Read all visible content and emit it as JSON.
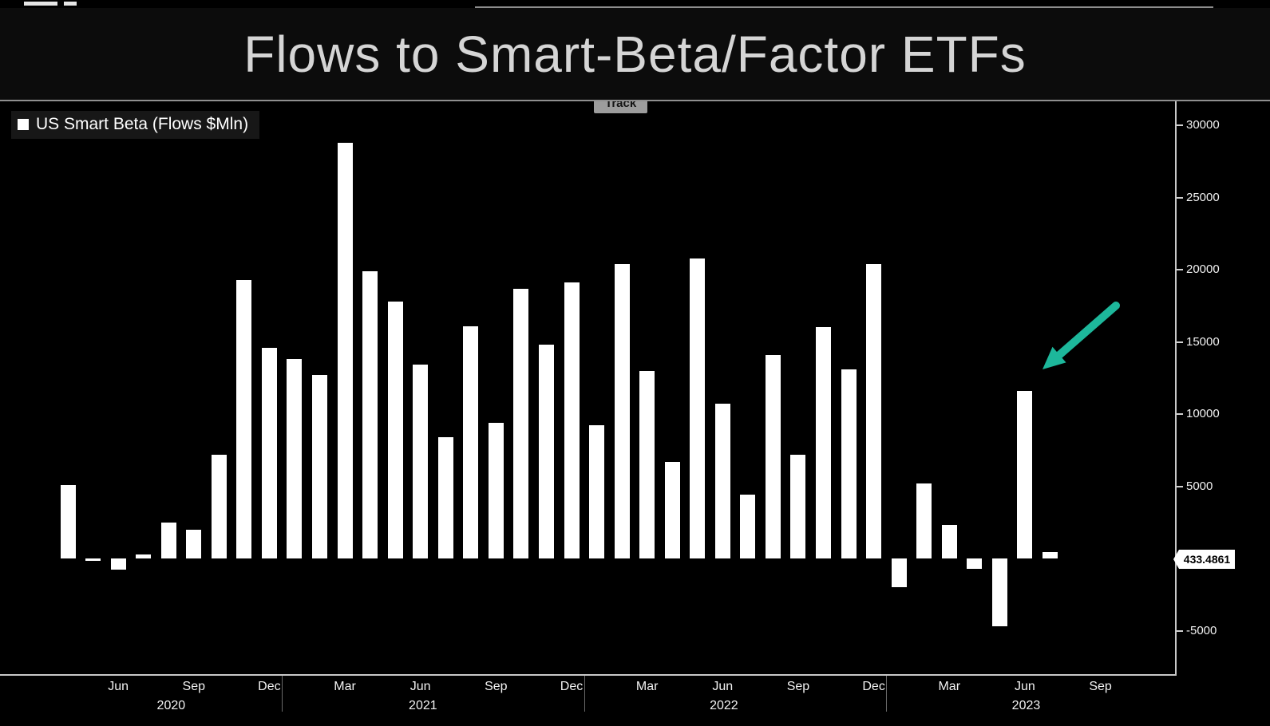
{
  "header": {
    "title": "Flows to Smart-Beta/Factor ETFs"
  },
  "toolbar": {
    "track_label": "Track"
  },
  "legend": {
    "label": "US Smart Beta (Flows $Mln)",
    "marker_color": "#ffffff"
  },
  "last_value_label": "433.4861",
  "annotation_arrow": {
    "color": "#1db79b",
    "points_at": "Jun 2023"
  },
  "chart_data": {
    "type": "bar",
    "title": "Flows to Smart-Beta/Factor ETFs",
    "series_name": "US Smart Beta (Flows $Mln)",
    "bar_color": "#ffffff",
    "background": "#000000",
    "grid": false,
    "legend_position": "top-left",
    "y_axis_side": "right",
    "ylim": [
      -7000,
      31500
    ],
    "yticks": [
      30000,
      25000,
      20000,
      15000,
      10000,
      5000,
      -5000
    ],
    "categories": [
      "Apr 2020",
      "May 2020",
      "Jun 2020",
      "Jul 2020",
      "Aug 2020",
      "Sep 2020",
      "Oct 2020",
      "Nov 2020",
      "Dec 2020",
      "Jan 2021",
      "Feb 2021",
      "Mar 2021",
      "Apr 2021",
      "May 2021",
      "Jun 2021",
      "Jul 2021",
      "Aug 2021",
      "Sep 2021",
      "Oct 2021",
      "Nov 2021",
      "Dec 2021",
      "Jan 2022",
      "Feb 2022",
      "Mar 2022",
      "Apr 2022",
      "May 2022",
      "Jun 2022",
      "Jul 2022",
      "Aug 2022",
      "Sep 2022",
      "Oct 2022",
      "Nov 2022",
      "Dec 2022",
      "Jan 2023",
      "Feb 2023",
      "Mar 2023",
      "Apr 2023",
      "May 2023",
      "Jun 2023",
      "Jul 2023"
    ],
    "values": [
      5100,
      -150,
      -800,
      250,
      2500,
      2000,
      7200,
      19300,
      14600,
      13800,
      12700,
      28800,
      19900,
      17800,
      13400,
      8400,
      16100,
      9400,
      18700,
      14800,
      19100,
      9200,
      20400,
      13000,
      6700,
      20800,
      10700,
      4400,
      14100,
      7200,
      16000,
      13100,
      20400,
      -2000,
      5200,
      2300,
      -700,
      -4700,
      11600,
      433.4861
    ],
    "last_value": 433.4861,
    "x_ticks": [
      {
        "label": "Jun",
        "month_index": 2
      },
      {
        "label": "Sep",
        "month_index": 5
      },
      {
        "label": "Dec",
        "month_index": 8
      },
      {
        "label": "Mar",
        "month_index": 11
      },
      {
        "label": "Jun",
        "month_index": 14
      },
      {
        "label": "Sep",
        "month_index": 17
      },
      {
        "label": "Dec",
        "month_index": 20
      },
      {
        "label": "Mar",
        "month_index": 23
      },
      {
        "label": "Jun",
        "month_index": 26
      },
      {
        "label": "Sep",
        "month_index": 29
      },
      {
        "label": "Dec",
        "month_index": 32
      },
      {
        "label": "Mar",
        "month_index": 35
      },
      {
        "label": "Jun",
        "month_index": 38
      },
      {
        "label": "Sep",
        "month_index": 41
      }
    ],
    "year_labels": [
      {
        "label": "2020",
        "month_index": 4.1
      },
      {
        "label": "2021",
        "month_index": 14.1
      },
      {
        "label": "2022",
        "month_index": 26.05
      },
      {
        "label": "2023",
        "month_index": 38.05
      }
    ],
    "year_separators_month_index": [
      8.5,
      20.5,
      32.5
    ]
  }
}
